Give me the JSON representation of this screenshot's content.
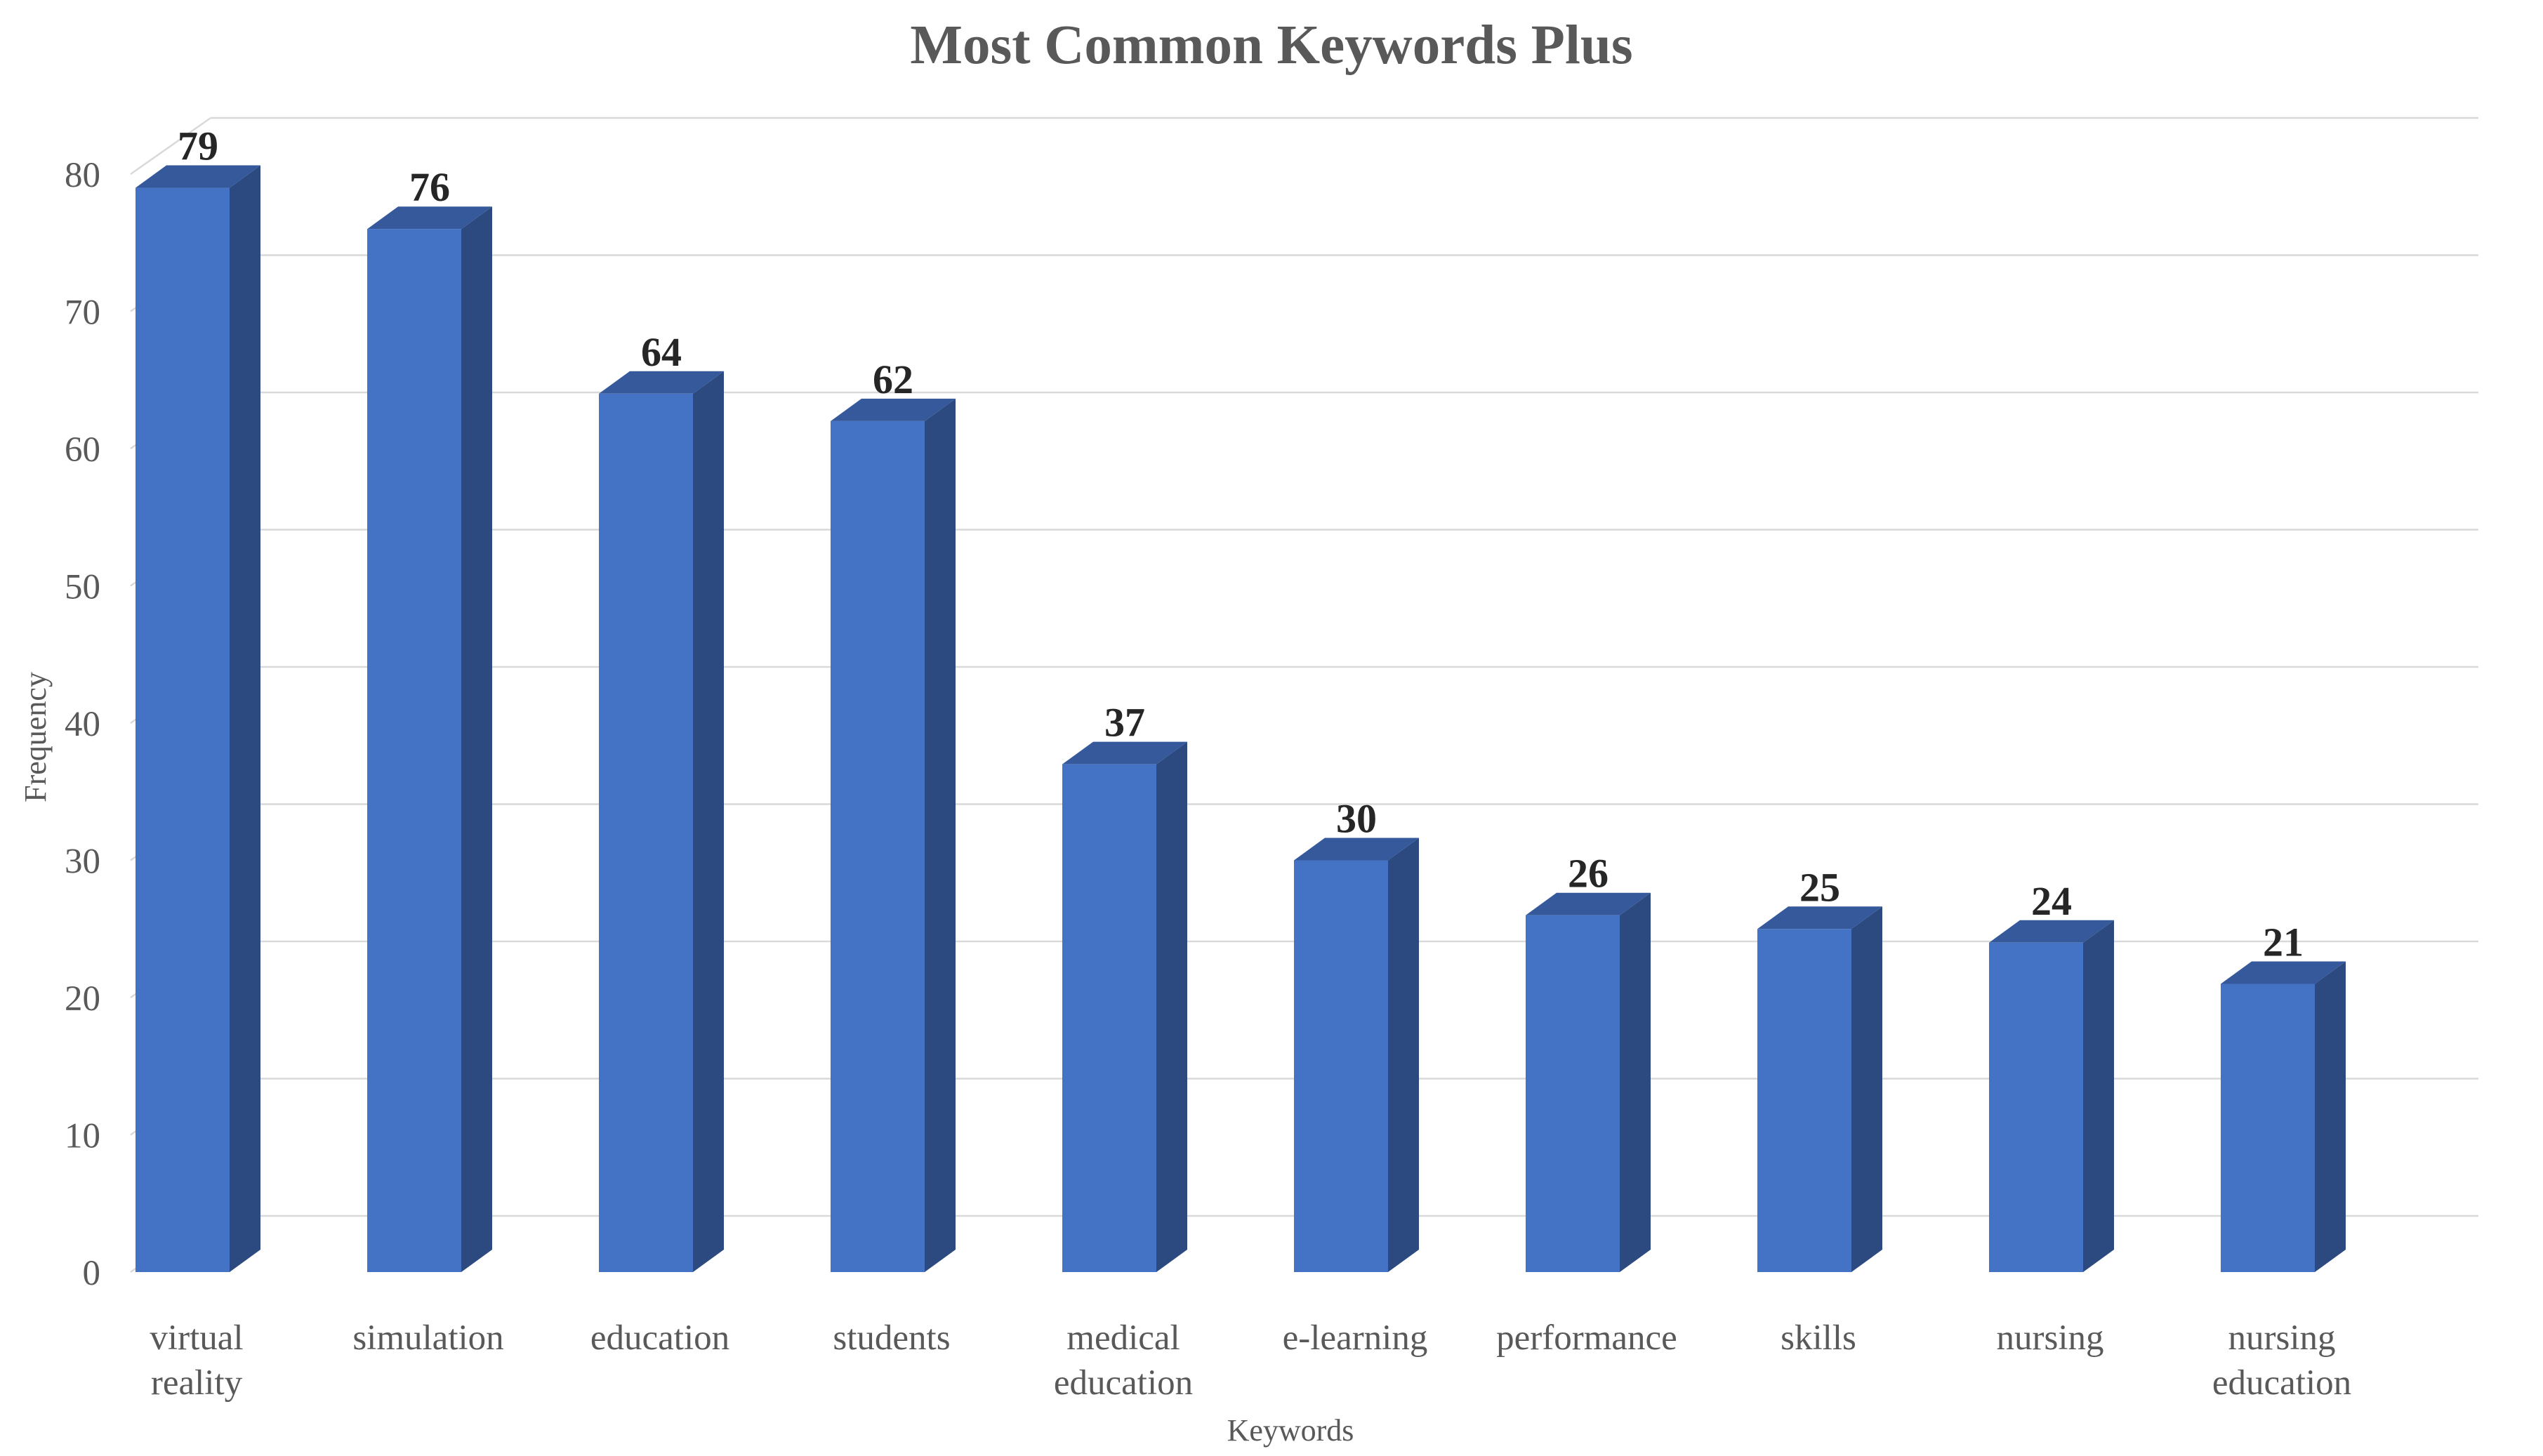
{
  "chart_data": {
    "type": "bar",
    "title": "Most Common Keywords Plus",
    "xlabel": "Keywords",
    "ylabel": "Frequency",
    "categories": [
      [
        "virtual",
        "reality"
      ],
      [
        "simulation"
      ],
      [
        "education"
      ],
      [
        "students"
      ],
      [
        "medical",
        "education"
      ],
      [
        "e-learning"
      ],
      [
        "performance"
      ],
      [
        "skills"
      ],
      [
        "nursing"
      ],
      [
        "nursing",
        "education"
      ]
    ],
    "values": [
      79,
      76,
      64,
      62,
      37,
      30,
      26,
      25,
      24,
      21
    ],
    "ylim": [
      0,
      80
    ],
    "yticks": [
      0,
      10,
      20,
      30,
      40,
      50,
      60,
      70,
      80
    ],
    "grid": true,
    "legend": "none",
    "style": "3d-column",
    "colors": {
      "bar_front": "#4472c4",
      "bar_side": "#2c4a80",
      "bar_top": "#35599b",
      "grid": "#d9d9d9",
      "text": "#595959",
      "data_label": "#262626"
    }
  }
}
